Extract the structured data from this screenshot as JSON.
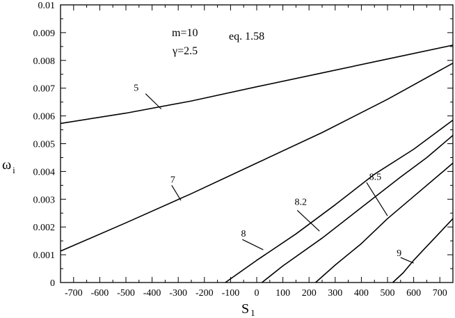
{
  "chart_data": {
    "type": "line",
    "xlabel": "S",
    "xlabel_subscript": "1",
    "ylabel": "ω",
    "ylabel_subscript": "i",
    "xlim": [
      -750,
      750
    ],
    "ylim": [
      0,
      0.01
    ],
    "x_ticks": [
      -700,
      -600,
      -500,
      -400,
      -300,
      -200,
      -100,
      0,
      100,
      200,
      300,
      400,
      500,
      600,
      700
    ],
    "x_tick_labels": [
      "-700",
      "-600",
      "-500",
      "-400",
      "-300",
      "-200",
      "-100",
      "0",
      "100",
      "200",
      "300",
      "400",
      "500",
      "600",
      "700"
    ],
    "y_ticks": [
      0,
      0.001,
      0.002,
      0.003,
      0.004,
      0.005,
      0.006,
      0.007,
      0.008,
      0.009,
      0.01
    ],
    "y_tick_labels": [
      "0",
      "0.001",
      "0.002",
      "0.003",
      "0.004",
      "0.005",
      "0.006",
      "0.007",
      "0.008",
      "0.009",
      "0.01"
    ],
    "grid": false,
    "annotations": [
      "m=10",
      "γ=2.5",
      "eq. 1.58"
    ],
    "series": [
      {
        "name": "5",
        "x": [
          -750,
          -500,
          -250,
          0,
          250,
          500,
          750
        ],
        "y": [
          0.00573,
          0.0061,
          0.00654,
          0.00705,
          0.00755,
          0.00805,
          0.00855
        ]
      },
      {
        "name": "7",
        "x": [
          -750,
          -500,
          -250,
          0,
          250,
          500,
          750
        ],
        "y": [
          0.00113,
          0.00215,
          0.0032,
          0.0043,
          0.0054,
          0.0066,
          0.0079
        ]
      },
      {
        "name": "8",
        "x": [
          -120,
          0,
          150,
          300,
          450,
          600,
          750
        ],
        "y": [
          0,
          0.0008,
          0.00175,
          0.0028,
          0.0039,
          0.0048,
          0.00585
        ]
      },
      {
        "name": "8.2",
        "x": [
          20,
          100,
          250,
          400,
          550,
          650,
          750
        ],
        "y": [
          0,
          0.0006,
          0.0016,
          0.0027,
          0.0038,
          0.0045,
          0.0053
        ]
      },
      {
        "name": "8.5",
        "x": [
          225,
          300,
          400,
          500,
          600,
          700,
          750
        ],
        "y": [
          0,
          0.00063,
          0.0014,
          0.0023,
          0.0031,
          0.0039,
          0.0043
        ]
      },
      {
        "name": "9",
        "x": [
          520,
          560,
          600,
          650,
          700,
          750
        ],
        "y": [
          0,
          0.00035,
          0.0008,
          0.0013,
          0.0018,
          0.0023
        ]
      }
    ],
    "curve_labels": [
      {
        "text": "5",
        "label_at": [
          -470,
          0.0069
        ],
        "leader_from": [
          -425,
          0.0068
        ],
        "leader_to": [
          -365,
          0.00625
        ]
      },
      {
        "text": "7",
        "label_at": [
          -330,
          0.0036
        ],
        "leader_from": [
          -325,
          0.0035
        ],
        "leader_to": [
          -290,
          0.00296
        ]
      },
      {
        "text": "8",
        "label_at": [
          -60,
          0.00165
        ],
        "leader_from": [
          -55,
          0.00155
        ],
        "leader_to": [
          25,
          0.00118
        ]
      },
      {
        "text": "8.2",
        "label_at": [
          145,
          0.0028
        ],
        "leader_from": [
          155,
          0.0026
        ],
        "leader_to": [
          240,
          0.00185
        ]
      },
      {
        "text": "8.5",
        "label_at": [
          430,
          0.0037
        ],
        "leader_from": [
          420,
          0.0036
        ],
        "leader_to": [
          500,
          0.0024
        ]
      },
      {
        "text": "9",
        "label_at": [
          535,
          0.00095
        ],
        "leader_from": [
          550,
          0.0009
        ],
        "leader_to": [
          600,
          0.0007
        ]
      }
    ]
  }
}
